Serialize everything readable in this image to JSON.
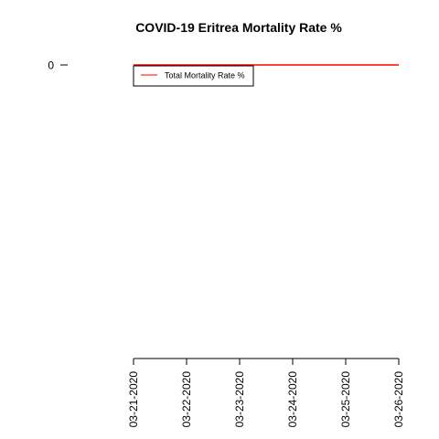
{
  "chart_data": {
    "type": "line",
    "title": "COVID-19 Eritrea Mortality Rate %",
    "xlabel": "",
    "ylabel": "",
    "categories": [
      "03-21-2020",
      "03-22-2020",
      "03-23-2020",
      "03-24-2020",
      "03-25-2020",
      "03-26-2020"
    ],
    "y_ticks": [
      "0"
    ],
    "series": [
      {
        "name": "Total Mortality Rate %",
        "values": [
          0,
          0,
          0,
          0,
          0,
          0
        ],
        "color": "#ff0000"
      }
    ],
    "grid": false,
    "legend_position": "top-left"
  }
}
